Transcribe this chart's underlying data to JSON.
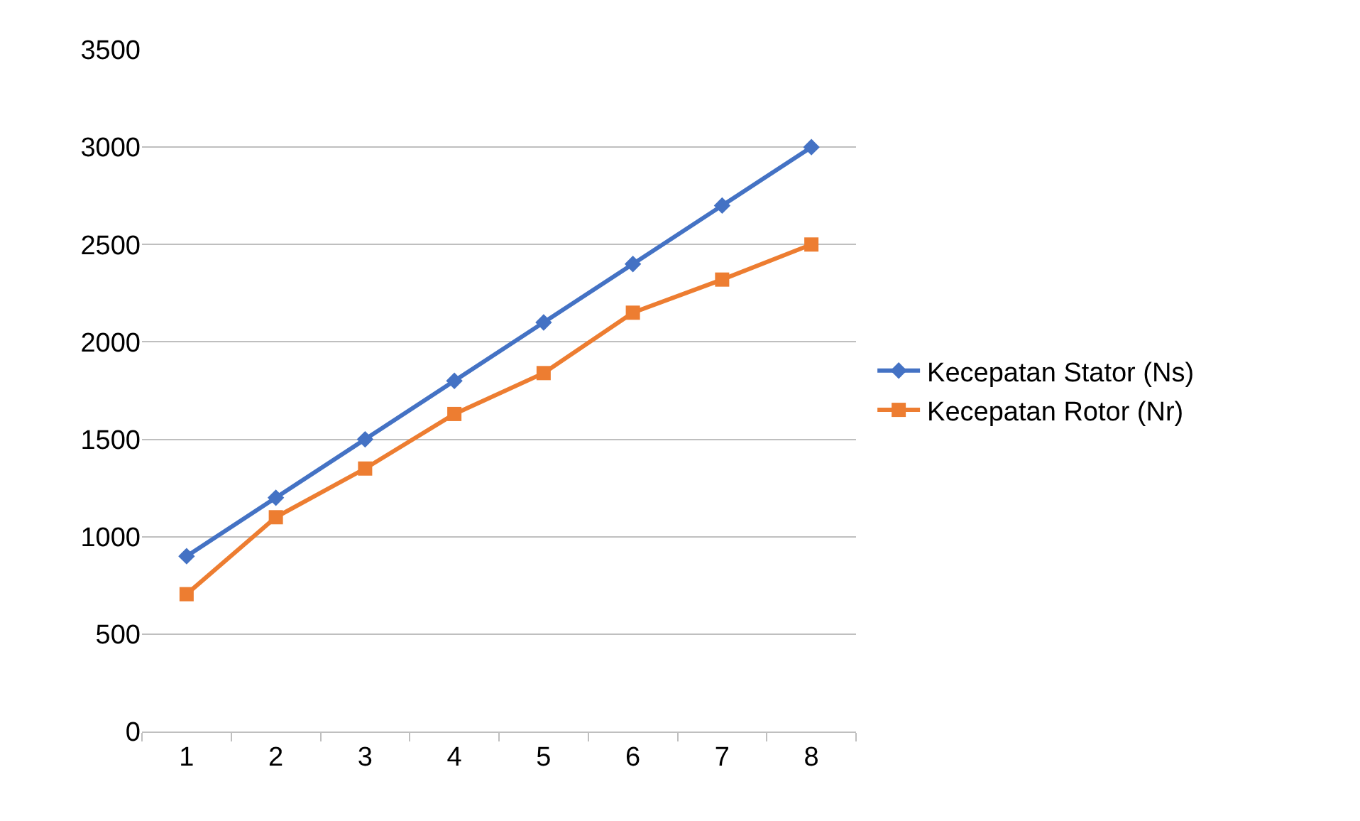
{
  "chart_data": {
    "type": "line",
    "categories": [
      "1",
      "2",
      "3",
      "4",
      "5",
      "6",
      "7",
      "8"
    ],
    "series": [
      {
        "name": "Kecepatan Stator (Ns)",
        "color": "#4472c4",
        "marker": "diamond",
        "values": [
          900,
          1200,
          1500,
          1800,
          2100,
          2400,
          2700,
          3000
        ]
      },
      {
        "name": "Kecepatan Rotor (Nr)",
        "color": "#ed7d31",
        "marker": "square",
        "values": [
          705,
          1100,
          1350,
          1630,
          1840,
          2150,
          2320,
          2500
        ]
      }
    ],
    "ylim": [
      0,
      3500
    ],
    "yticks": [
      0,
      500,
      1000,
      1500,
      2000,
      2500,
      3000,
      3500
    ],
    "grid": "y",
    "legend": "right",
    "line_style": "solid"
  }
}
